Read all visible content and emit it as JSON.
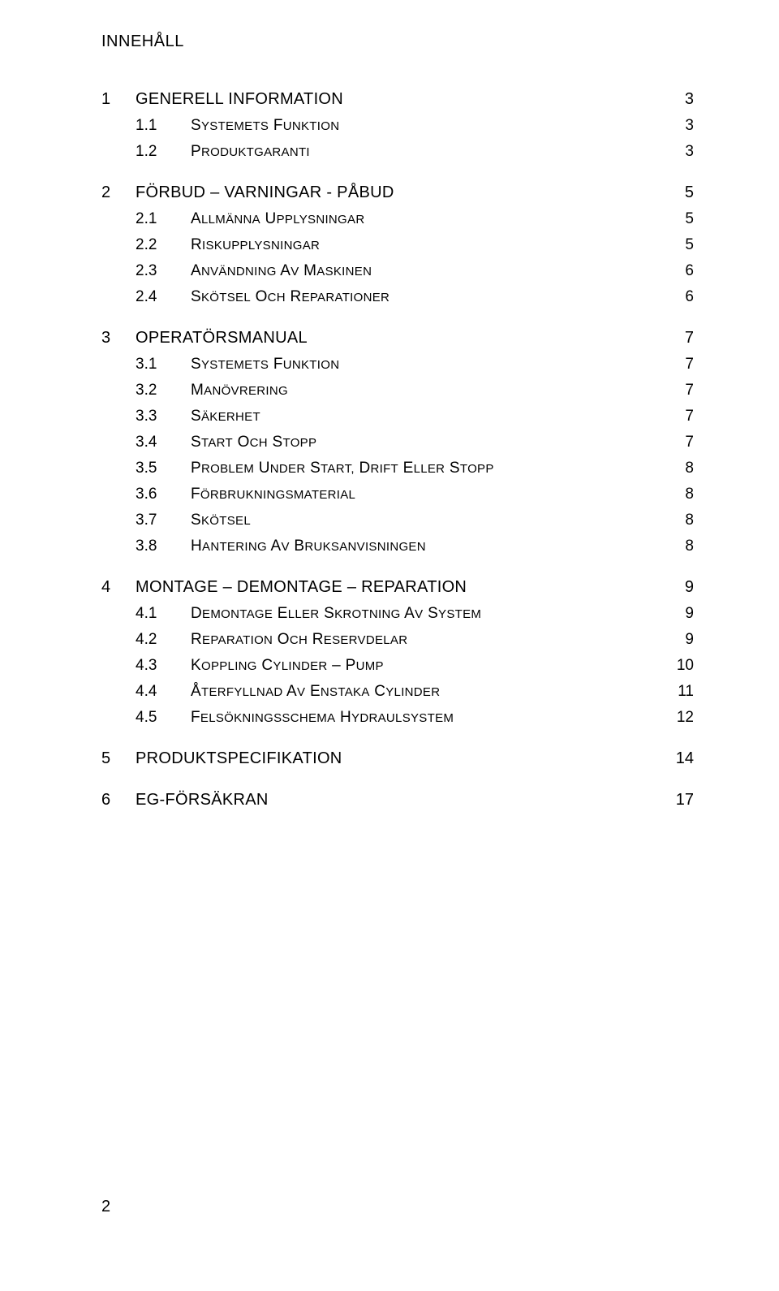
{
  "title": "INNEHÅLL",
  "footer_page": "2",
  "colors": {
    "text": "#000000",
    "background": "#ffffff"
  },
  "typography": {
    "font_family": "Arial",
    "title_fontsize": 20,
    "level1_fontsize": 20,
    "level2_fontsize": 19
  },
  "entries": [
    {
      "level": 1,
      "num": "1",
      "text": "GENERELL INFORMATION",
      "page": "3"
    },
    {
      "level": 2,
      "num": "1.1",
      "text": "SYSTEMETS FUNKTION",
      "page": "3"
    },
    {
      "level": 2,
      "num": "1.2",
      "text": "PRODUKTGARANTI",
      "page": "3"
    },
    {
      "level": 1,
      "num": "2",
      "text": "FÖRBUD – VARNINGAR - PÅBUD",
      "page": "5"
    },
    {
      "level": 2,
      "num": "2.1",
      "text": "ALLMÄNNA UPPLYSNINGAR",
      "page": "5"
    },
    {
      "level": 2,
      "num": "2.2",
      "text": "RISKUPPLYSNINGAR",
      "page": "5"
    },
    {
      "level": 2,
      "num": "2.3",
      "text": "ANVÄNDNING AV MASKINEN",
      "page": "6"
    },
    {
      "level": 2,
      "num": "2.4",
      "text": "SKÖTSEL OCH REPARATIONER",
      "page": "6"
    },
    {
      "level": 1,
      "num": "3",
      "text": "OPERATÖRSMANUAL",
      "page": "7"
    },
    {
      "level": 2,
      "num": "3.1",
      "text": "SYSTEMETS FUNKTION",
      "page": "7"
    },
    {
      "level": 2,
      "num": "3.2",
      "text": "MANÖVRERING",
      "page": "7"
    },
    {
      "level": 2,
      "num": "3.3",
      "text": "SÄKERHET",
      "page": "7"
    },
    {
      "level": 2,
      "num": "3.4",
      "text": "START OCH STOPP",
      "page": "7"
    },
    {
      "level": 2,
      "num": "3.5",
      "text": "PROBLEM UNDER START, DRIFT ELLER STOPP",
      "page": "8"
    },
    {
      "level": 2,
      "num": "3.6",
      "text": "FÖRBRUKNINGSMATERIAL",
      "page": "8"
    },
    {
      "level": 2,
      "num": "3.7",
      "text": "SKÖTSEL",
      "page": "8"
    },
    {
      "level": 2,
      "num": "3.8",
      "text": "HANTERING AV BRUKSANVISNINGEN",
      "page": "8"
    },
    {
      "level": 1,
      "num": "4",
      "text": "MONTAGE – DEMONTAGE – REPARATION",
      "page": "9"
    },
    {
      "level": 2,
      "num": "4.1",
      "text": "DEMONTAGE ELLER SKROTNING AV SYSTEM",
      "page": "9"
    },
    {
      "level": 2,
      "num": "4.2",
      "text": "REPARATION OCH RESERVDELAR",
      "page": "9"
    },
    {
      "level": 2,
      "num": "4.3",
      "text": "KOPPLING CYLINDER – PUMP",
      "page": "10"
    },
    {
      "level": 2,
      "num": "4.4",
      "text": "ÅTERFYLLNAD AV ENSTAKA CYLINDER",
      "page": "11"
    },
    {
      "level": 2,
      "num": "4.5",
      "text": "FELSÖKNINGSSCHEMA HYDRAULSYSTEM",
      "page": "12"
    },
    {
      "level": 1,
      "num": "5",
      "text": "PRODUKTSPECIFIKATION",
      "page": "14"
    },
    {
      "level": 1,
      "num": "6",
      "text": "EG-FÖRSÄKRAN",
      "page": "17"
    }
  ]
}
